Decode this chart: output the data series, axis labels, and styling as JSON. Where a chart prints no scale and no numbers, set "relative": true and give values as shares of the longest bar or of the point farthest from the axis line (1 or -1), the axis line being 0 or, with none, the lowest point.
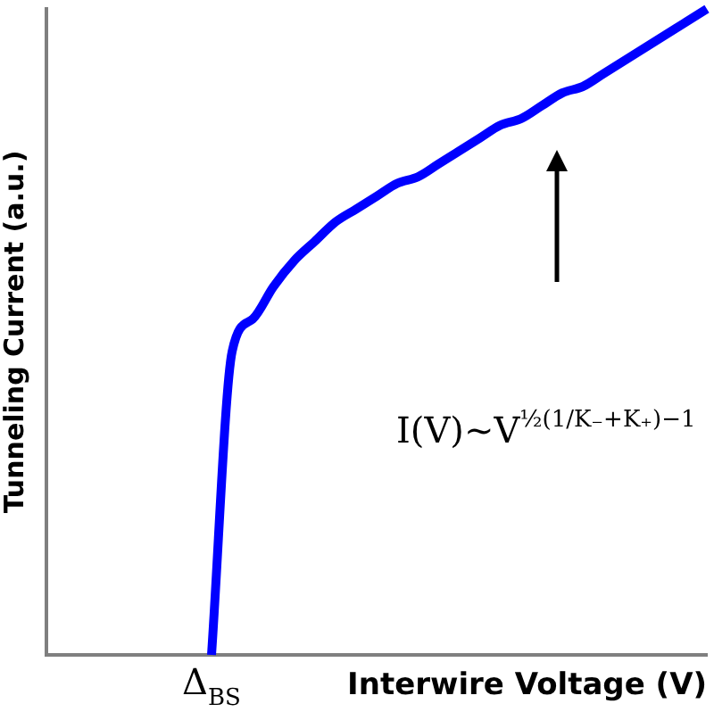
{
  "chart_data": {
    "type": "line",
    "relative": true,
    "xlabel": "Interwire Voltage (V)",
    "ylabel": "Tunneling Current (a.u.)",
    "categories": [
      null,
      null,
      null,
      null,
      null,
      null,
      null,
      null,
      null,
      null,
      null,
      null,
      null,
      null,
      null,
      null,
      null,
      null,
      null,
      null,
      null,
      null,
      null,
      null,
      null,
      null,
      null,
      null,
      null,
      null,
      null,
      null,
      null
    ],
    "series": [
      {
        "color": "#0000ff",
        "values": [
          null,
          null,
          null,
          null,
          null,
          null,
          null,
          null,
          0,
          0.47,
          0.52,
          0.57,
          0.61,
          0.64,
          0.67,
          0.69,
          0.71,
          0.73,
          0.74,
          0.76,
          0.78,
          0.8,
          0.82,
          0.83,
          0.85,
          0.87,
          0.88,
          0.9,
          0.92,
          0.94,
          0.96,
          0.98,
          1
        ]
      }
    ],
    "annotations": [
      "Δ$_{BS}$",
      "I(V)~V$^{½(1/K₋+K₊)−1}$"
    ],
    "marker": "none",
    "line_style": "solid",
    "grid": false,
    "legend": false
  }
}
